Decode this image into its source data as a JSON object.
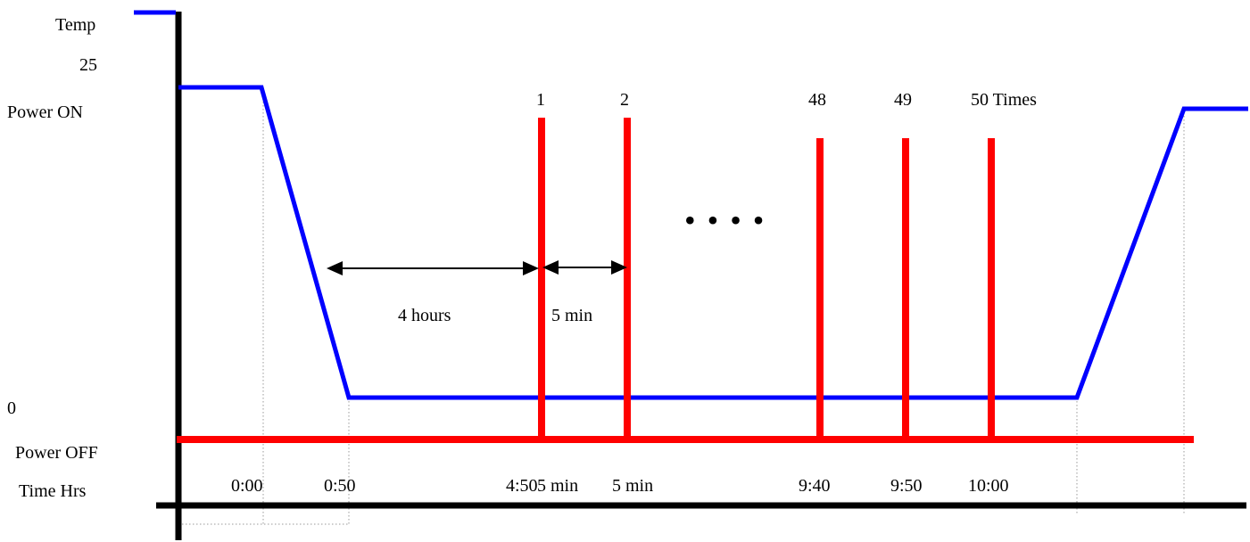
{
  "labels": {
    "temp": "Temp",
    "temp_max": "25",
    "power_on": "Power  ON",
    "temp_min": "0",
    "power_off": "Power  OFF",
    "time_axis": "Time Hrs"
  },
  "pulse_labels": [
    "1",
    "2",
    "48",
    "49",
    "50  Times"
  ],
  "ellipsis": "• • • •",
  "durations": {
    "soak": "4  hours",
    "interval": "5  min"
  },
  "time_ticks": [
    "0:00",
    "0:50",
    "4:50",
    "5  min",
    "5  min",
    "9:40",
    "9:50",
    "10:00"
  ],
  "colors": {
    "temperature": "#0000ff",
    "power": "#ff0000",
    "axis": "#000000",
    "guide": "#999999"
  }
}
